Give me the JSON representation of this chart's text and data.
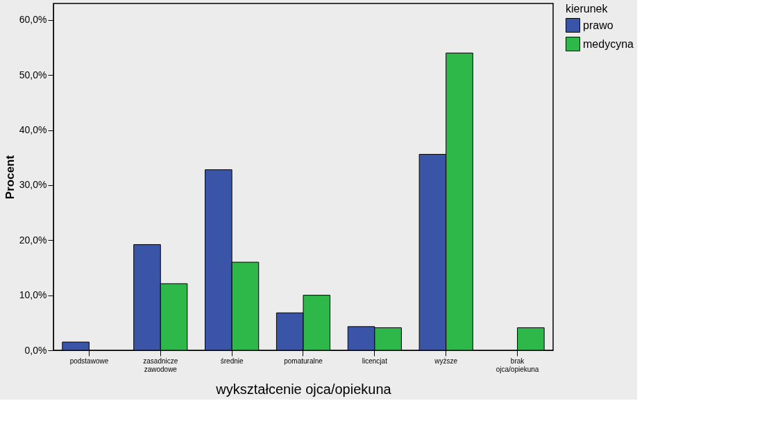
{
  "chart_data": {
    "type": "bar",
    "xlabel": "wykształcenie ojca/opiekuna",
    "ylabel": "Procent",
    "legend_title": "kierunek",
    "legend": "top right",
    "categories": [
      "podstawowe",
      "zasadnicze zawodowe",
      "średnie",
      "pomaturalne",
      "licencjat",
      "wyższe",
      "brak ojca/opiekuna"
    ],
    "series": [
      {
        "name": "prawo",
        "color": "#3a55a8",
        "values": [
          1.5,
          19.2,
          32.8,
          6.8,
          4.3,
          35.6,
          null
        ]
      },
      {
        "name": "medycyna",
        "color": "#2fb84a",
        "values": [
          null,
          12.1,
          16.0,
          10.0,
          4.1,
          54.0,
          4.1
        ]
      }
    ],
    "ylim": [
      0,
      63
    ],
    "yticks": [
      {
        "value": 0,
        "label": "0,0%"
      },
      {
        "value": 10,
        "label": "10,0%"
      },
      {
        "value": 20,
        "label": "20,0%"
      },
      {
        "value": 30,
        "label": "30,0%"
      },
      {
        "value": 40,
        "label": "40,0%"
      },
      {
        "value": 50,
        "label": "50,0%"
      },
      {
        "value": 60,
        "label": "60,0%"
      }
    ],
    "grid": false
  }
}
